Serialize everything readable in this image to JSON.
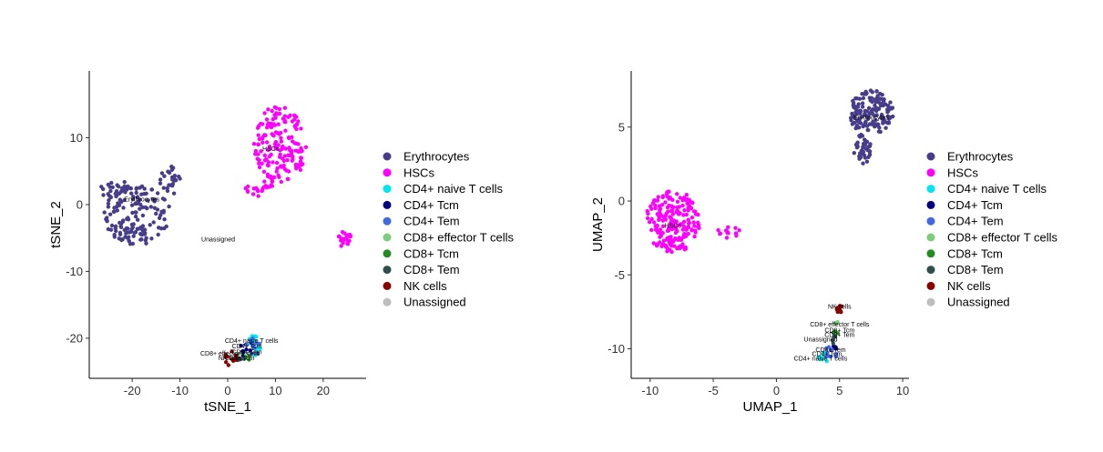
{
  "chart_data": [
    {
      "type": "scatter",
      "xlabel": "tSNE_1",
      "ylabel": "tSNE_2",
      "xlim": [
        -29,
        29
      ],
      "ylim": [
        -26,
        20
      ],
      "xticks": [
        -20,
        -10,
        0,
        10,
        20
      ],
      "yticks": [
        -20,
        -10,
        0,
        10
      ],
      "grid": false,
      "legend_position": "right",
      "series": [
        {
          "name": "Erythrocytes",
          "color": "#483D8B",
          "clusters": [
            {
              "cx": -19,
              "cy": -1.5,
              "rx": 7,
              "ry": 4.5,
              "n": 150
            },
            {
              "cx": -24,
              "cy": 2.5,
              "rx": 3,
              "ry": 1.5,
              "n": 25
            },
            {
              "cx": -12,
              "cy": 3.5,
              "rx": 2.2,
              "ry": 2.5,
              "n": 25
            }
          ]
        },
        {
          "name": "HSCs",
          "color": "#FF00FF",
          "clusters": [
            {
              "cx": 11,
              "cy": 9,
              "rx": 5.5,
              "ry": 6,
              "n": 170
            },
            {
              "cx": 6.5,
              "cy": 2.5,
              "rx": 3,
              "ry": 1.3,
              "n": 20
            },
            {
              "cx": 24.5,
              "cy": -5.2,
              "rx": 1.6,
              "ry": 1.2,
              "n": 22
            }
          ]
        },
        {
          "name": "CD4+ naive T cells",
          "color": "#00E5EE",
          "clusters": [
            {
              "cx": 5.5,
              "cy": -21,
              "rx": 1.6,
              "ry": 1.6,
              "n": 14
            }
          ]
        },
        {
          "name": "CD4+ Tcm",
          "color": "#000080",
          "clusters": [
            {
              "cx": 4,
              "cy": -21.5,
              "rx": 1.5,
              "ry": 1.4,
              "n": 10
            }
          ]
        },
        {
          "name": "CD4+ Tem",
          "color": "#4169E1",
          "clusters": [
            {
              "cx": 5,
              "cy": -21.5,
              "rx": 2,
              "ry": 1.6,
              "n": 12
            }
          ]
        },
        {
          "name": "CD8+ effector T cells",
          "color": "#7CCD7C",
          "clusters": [
            {
              "cx": 3,
              "cy": -22.5,
              "rx": 1,
              "ry": 0.8,
              "n": 3
            }
          ]
        },
        {
          "name": "CD8+ Tcm",
          "color": "#228B22",
          "clusters": [
            {
              "cx": 4.5,
              "cy": -22.5,
              "rx": 1,
              "ry": 0.8,
              "n": 3
            }
          ]
        },
        {
          "name": "CD8+ Tem",
          "color": "#2F4F4F",
          "clusters": [
            {
              "cx": 3,
              "cy": -23,
              "rx": 1.2,
              "ry": 0.8,
              "n": 5
            }
          ]
        },
        {
          "name": "NK cells",
          "color": "#8B0000",
          "clusters": [
            {
              "cx": 0.5,
              "cy": -23,
              "rx": 1.5,
              "ry": 1.1,
              "n": 12
            }
          ]
        },
        {
          "name": "Unassigned",
          "color": "#BEBEBE",
          "clusters": []
        }
      ],
      "annotations": [
        {
          "text": "Erythrocytes",
          "x": -18,
          "y": 0.5
        },
        {
          "text": "HSCs",
          "x": 9,
          "y": 8
        },
        {
          "text": "Unassigned",
          "x": -2,
          "y": -5.5
        },
        {
          "text": "CD4+ naive T cells",
          "x": 5,
          "y": -20.7
        },
        {
          "text": "CD4+ Tcm",
          "x": 4,
          "y": -21.5
        },
        {
          "text": "CD4+ Tem",
          "x": 4,
          "y": -22.4
        },
        {
          "text": "CD8+ effector T cells",
          "x": 0.5,
          "y": -22.6
        },
        {
          "text": "CD8+ Tcm",
          "x": 2.5,
          "y": -23.3
        },
        {
          "text": "NK cells",
          "x": 0.5,
          "y": -23.3
        }
      ]
    },
    {
      "type": "scatter",
      "xlabel": "UMAP_1",
      "ylabel": "UMAP_2",
      "xlim": [
        -11.5,
        10.5
      ],
      "ylim": [
        -12,
        8.8
      ],
      "xticks": [
        -10,
        -5,
        0,
        5,
        10
      ],
      "yticks": [
        -10,
        -5,
        0,
        5
      ],
      "grid": false,
      "legend_position": "right",
      "series": [
        {
          "name": "Erythrocytes",
          "color": "#483D8B",
          "clusters": [
            {
              "cx": 7.5,
              "cy": 6,
              "rx": 1.8,
              "ry": 1.5,
              "n": 150
            },
            {
              "cx": 6.8,
              "cy": 3.5,
              "rx": 0.7,
              "ry": 1.0,
              "n": 40
            }
          ]
        },
        {
          "name": "HSCs",
          "color": "#FF00FF",
          "clusters": [
            {
              "cx": -8.2,
              "cy": -1.4,
              "rx": 2.2,
              "ry": 2.1,
              "n": 200
            },
            {
              "cx": -3.8,
              "cy": -2.1,
              "rx": 0.9,
              "ry": 0.4,
              "n": 15
            }
          ]
        },
        {
          "name": "CD4+ naive T cells",
          "color": "#00E5EE",
          "clusters": [
            {
              "cx": 3.8,
              "cy": -10.6,
              "rx": 0.5,
              "ry": 0.4,
              "n": 10
            }
          ]
        },
        {
          "name": "CD4+ Tcm",
          "color": "#000080",
          "clusters": [
            {
              "cx": 4.5,
              "cy": -10,
              "rx": 0.3,
              "ry": 0.3,
              "n": 6
            }
          ]
        },
        {
          "name": "CD4+ Tem",
          "color": "#4169E1",
          "clusters": [
            {
              "cx": 4.3,
              "cy": -10.3,
              "rx": 0.5,
              "ry": 0.5,
              "n": 10
            }
          ]
        },
        {
          "name": "CD8+ effector T cells",
          "color": "#7CCD7C",
          "clusters": [
            {
              "cx": 4.8,
              "cy": -8.2,
              "rx": 0.15,
              "ry": 0.3,
              "n": 3
            }
          ]
        },
        {
          "name": "CD8+ Tcm",
          "color": "#228B22",
          "clusters": [
            {
              "cx": 4.7,
              "cy": -8.8,
              "rx": 0.2,
              "ry": 0.3,
              "n": 3
            }
          ]
        },
        {
          "name": "CD8+ Tem",
          "color": "#2F4F4F",
          "clusters": [
            {
              "cx": 4.6,
              "cy": -9.4,
              "rx": 0.2,
              "ry": 0.3,
              "n": 4
            }
          ]
        },
        {
          "name": "NK cells",
          "color": "#8B0000",
          "clusters": [
            {
              "cx": 5,
              "cy": -7.3,
              "rx": 0.25,
              "ry": 0.3,
              "n": 12
            }
          ]
        },
        {
          "name": "Unassigned",
          "color": "#BEBEBE",
          "clusters": []
        }
      ],
      "annotations": [
        {
          "text": "Erythrocytes",
          "x": 7.5,
          "y": 5.5
        },
        {
          "text": "HSCs",
          "x": -8.2,
          "y": -1.8
        },
        {
          "text": "NK cells",
          "x": 5,
          "y": -7.3
        },
        {
          "text": "CD8+ effector T cells",
          "x": 5,
          "y": -8.5
        },
        {
          "text": "CD8+ Tcm",
          "x": 5,
          "y": -8.9
        },
        {
          "text": "CD8+ Tem",
          "x": 5,
          "y": -9.2
        },
        {
          "text": "Unassigned",
          "x": 3.5,
          "y": -9.5
        },
        {
          "text": "CD4+ Tem",
          "x": 4.3,
          "y": -10.2
        },
        {
          "text": "CD4+ Tcm",
          "x": 4,
          "y": -10.5
        },
        {
          "text": "CD4+ naive T cells",
          "x": 3.5,
          "y": -10.8
        }
      ]
    }
  ]
}
